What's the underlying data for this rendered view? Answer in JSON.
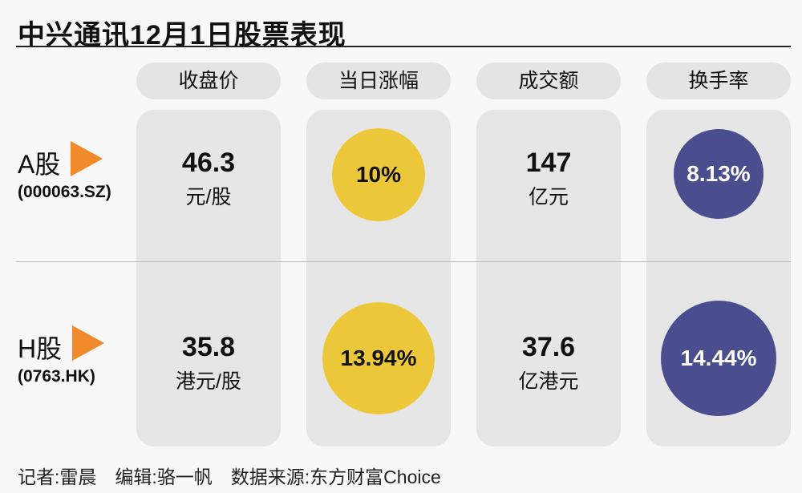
{
  "title": "中兴通讯12月1日股票表现",
  "columns": [
    "收盘价",
    "当日涨幅",
    "成交额",
    "换手率"
  ],
  "rows": [
    {
      "label": "A股",
      "code": "(000063.SZ)",
      "price": "46.3",
      "price_unit": "元/股",
      "change": "10%",
      "volume": "147",
      "volume_unit": "亿元",
      "turnover": "8.13%"
    },
    {
      "label": "H股",
      "code": "(0763.HK)",
      "price": "35.8",
      "price_unit": "港元/股",
      "change": "13.94%",
      "volume": "37.6",
      "volume_unit": "亿港元",
      "turnover": "14.44%"
    }
  ],
  "colors": {
    "change": "#ecc73a",
    "turnover": "#4a4d8e",
    "arrow": "#f08a2a"
  },
  "footer": "记者:雷晨　编辑:骆一帆　数据来源:东方财富Choice"
}
